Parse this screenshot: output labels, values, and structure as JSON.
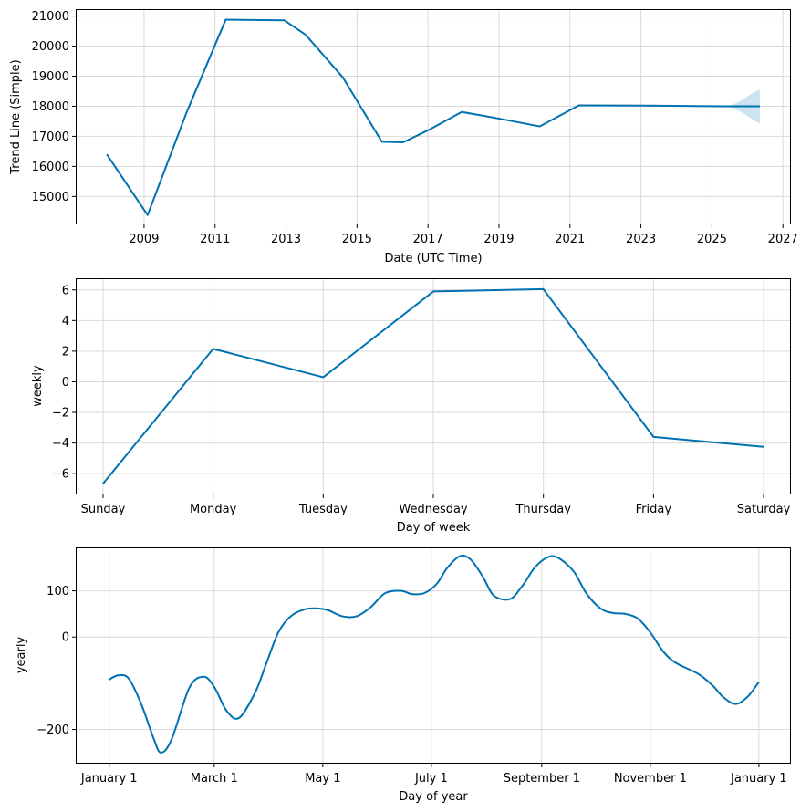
{
  "colors": {
    "line": "#0072B2",
    "band": "#0072B2",
    "grid": "#d9d9d9"
  },
  "chart_data": [
    {
      "type": "line",
      "xlabel": "Date (UTC Time)",
      "ylabel": "Trend Line (Simple)",
      "grid": true,
      "x_ticks": [
        "2009",
        "2011",
        "2013",
        "2015",
        "2017",
        "2019",
        "2021",
        "2023",
        "2025",
        "2027"
      ],
      "y_ticks": [
        "15000",
        "16000",
        "17000",
        "18000",
        "19000",
        "20000",
        "21000"
      ],
      "xlim": [
        2007.1,
        2027.2
      ],
      "ylim": [
        14100,
        21200
      ],
      "series": [
        {
          "x": [
            2007.95,
            2009.1,
            2010.2,
            2011.3,
            2012.95,
            2013.55,
            2014.6,
            2015.7,
            2016.3,
            2017.0,
            2017.95,
            2019.05,
            2020.15,
            2021.25,
            2023.2,
            2025.4,
            2026.35
          ],
          "y": [
            16400,
            14380,
            17800,
            20880,
            20860,
            20380,
            18960,
            16820,
            16800,
            17200,
            17810,
            17580,
            17330,
            18030,
            18020,
            18000,
            18000
          ]
        }
      ],
      "uncertainty": {
        "x": [
          2025.4,
          2025.6,
          2025.8,
          2026.0,
          2026.2,
          2026.35
        ],
        "upper": [
          18000,
          18060,
          18180,
          18320,
          18480,
          18560
        ],
        "lower": [
          18000,
          17940,
          17820,
          17680,
          17520,
          17420
        ]
      }
    },
    {
      "type": "line",
      "xlabel": "Day of week",
      "ylabel": "weekly",
      "grid": true,
      "categories": [
        "Sunday",
        "Monday",
        "Tuesday",
        "Wednesday",
        "Thursday",
        "Friday",
        "Saturday"
      ],
      "y_ticks": [
        "−6",
        "−4",
        "−2",
        "0",
        "2",
        "4",
        "6"
      ],
      "y_tick_values": [
        -6,
        -4,
        -2,
        0,
        2,
        4,
        6
      ],
      "ylim": [
        -7.3,
        6.7
      ],
      "series": [
        {
          "values": [
            -6.65,
            2.15,
            0.3,
            5.9,
            6.05,
            -3.6,
            -4.25
          ]
        }
      ]
    },
    {
      "type": "line",
      "xlabel": "Day of year",
      "ylabel": "yearly",
      "grid": true,
      "x_ticks": [
        "January 1",
        "March 1",
        "May 1",
        "July 1",
        "September 1",
        "November 1",
        "January 1"
      ],
      "x_tick_values": [
        0,
        59,
        120,
        181,
        243,
        304,
        365
      ],
      "y_ticks": [
        "−200",
        "0",
        "100"
      ],
      "y_tick_values": [
        -200,
        0,
        100
      ],
      "xlim": [
        -18.3,
        382.5
      ],
      "ylim": [
        -272,
        192
      ],
      "series": [
        {
          "x": [
            0,
            5,
            11,
            18,
            25,
            29,
            35,
            45,
            53,
            59,
            66,
            73,
            82,
            88,
            95,
            102,
            110,
            117,
            123,
            131,
            139,
            147,
            155,
            164,
            170,
            177,
            184,
            190,
            197,
            203,
            210,
            216,
            225,
            232,
            239,
            246,
            252,
            261,
            268,
            276,
            283,
            290,
            297,
            304,
            311,
            318,
            331,
            339,
            345,
            352,
            359,
            365
          ],
          "y": [
            -92,
            -83,
            -90,
            -145,
            -220,
            -250,
            -222,
            -110,
            -86,
            -108,
            -160,
            -175,
            -120,
            -60,
            10,
            45,
            60,
            62,
            58,
            45,
            45,
            65,
            95,
            100,
            93,
            95,
            115,
            150,
            175,
            168,
            130,
            90,
            82,
            110,
            150,
            172,
            172,
            142,
            95,
            62,
            52,
            50,
            40,
            10,
            -30,
            -55,
            -80,
            -105,
            -130,
            -145,
            -128,
            -97
          ]
        }
      ]
    }
  ]
}
